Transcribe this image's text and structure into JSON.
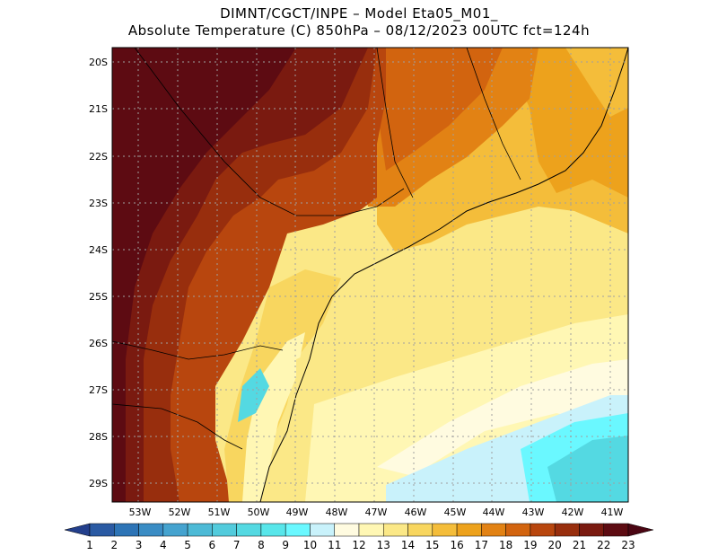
{
  "title": {
    "line1": "DIMNT/CGCT/INPE –  Model Eta05_M01_",
    "line2": "Absolute Temperature (C) 850hPa –  08/12/2023 00UTC fct=124h"
  },
  "axes": {
    "lat_labels": [
      "20S",
      "21S",
      "22S",
      "23S",
      "24S",
      "25S",
      "26S",
      "27S",
      "28S",
      "29S"
    ],
    "lon_labels": [
      "53W",
      "52W",
      "51W",
      "50W",
      "49W",
      "48W",
      "47W",
      "46W",
      "45W",
      "44W",
      "43W",
      "42W",
      "41W"
    ]
  },
  "colorbar": {
    "labels": [
      "1",
      "2",
      "3",
      "4",
      "5",
      "6",
      "7",
      "8",
      "9",
      "10",
      "11",
      "12",
      "13",
      "14",
      "15",
      "16",
      "17",
      "18",
      "19",
      "20",
      "21",
      "22",
      "23"
    ],
    "colors": [
      "#233f8c",
      "#2a5aa3",
      "#2d74b6",
      "#3a8cc4",
      "#45a3cf",
      "#4dbad6",
      "#52cbdc",
      "#54d9e2",
      "#58e6ea",
      "#6af8ff",
      "#c9f2fb",
      "#fffbe0",
      "#fff7b4",
      "#fbe887",
      "#f8d65f",
      "#f4bd3a",
      "#eda21c",
      "#e28214",
      "#d2640f",
      "#b8460e",
      "#982e0d",
      "#7a1a10",
      "#5d0b12",
      "#4b0613"
    ]
  },
  "chart_data": {
    "type": "heatmap",
    "variable": "Absolute Temperature (C) 850hPa",
    "model": "Eta05_M01_",
    "date": "08/12/2023 00UTC",
    "forecast": "fct=124h",
    "lat_range": [
      "29.5S",
      "19.5S"
    ],
    "lon_range": [
      "53.5W",
      "40.5W"
    ],
    "scale_min": 1,
    "scale_max": 23
  }
}
